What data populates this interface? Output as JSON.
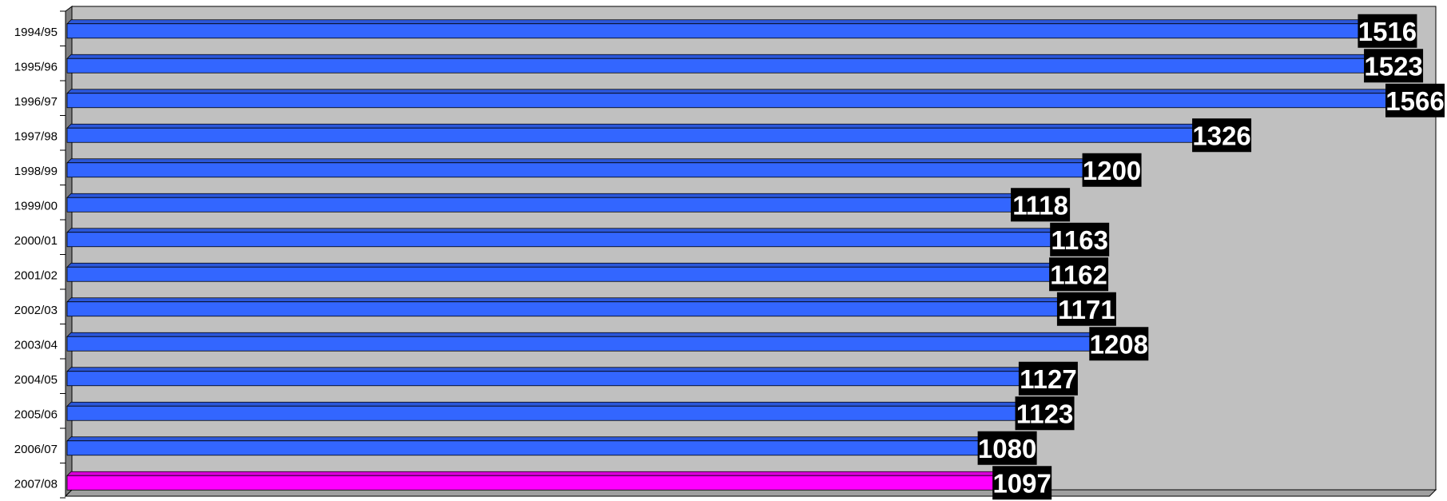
{
  "chart_data": {
    "type": "bar",
    "orientation": "horizontal",
    "categories": [
      "1994/95",
      "1995/96",
      "1996/97",
      "1997/98",
      "1998/99",
      "1999/00",
      "2000/01",
      "2001/02",
      "2002/03",
      "2003/04",
      "2004/05",
      "2005/06",
      "2006/07",
      "2007/08"
    ],
    "values": [
      1516,
      1523,
      1566,
      1326,
      1200,
      1118,
      1163,
      1162,
      1171,
      1208,
      1127,
      1123,
      1080,
      1097
    ],
    "data_labels": [
      "1516",
      "1523",
      "1566",
      "1326",
      "1200",
      "1118",
      "1163",
      "1162",
      "1171",
      "1208",
      "1127",
      "1123",
      "1080",
      "1097"
    ],
    "xlim": [
      0,
      1566
    ],
    "grid": false,
    "legend": "none",
    "colors": {
      "default_bar": "#3366ff",
      "highlight_bar": "#ff00ff",
      "background": "#c0c0c0",
      "label_box": "#000000"
    },
    "highlight_index": 13
  }
}
